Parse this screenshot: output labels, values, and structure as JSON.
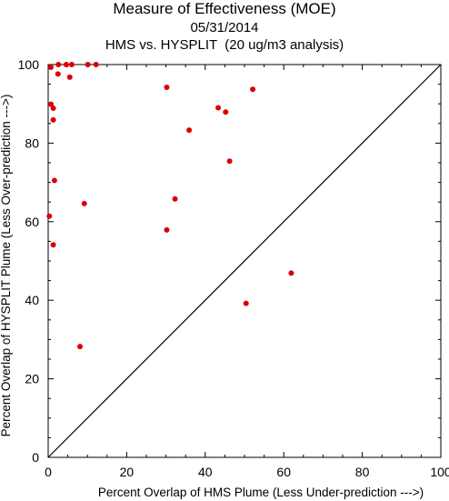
{
  "header": {
    "title": "Measure of Effectiveness (MOE)",
    "date": "05/31/2014",
    "subtitle": "HMS vs. HYSPLIT  (20 ug/m3 analysis)"
  },
  "chart_data": {
    "type": "scatter",
    "title": "Measure of Effectiveness (MOE)",
    "subtitle": "05/31/2014 — HMS vs. HYSPLIT  (20 ug/m3 analysis)",
    "xlabel": "Percent Overlap of HMS Plume (Less Under-prediction --->)",
    "ylabel": "Percent Overlap of HYSPLIT Plume (Less Over-prediction --->)",
    "xlim": [
      0,
      100
    ],
    "ylim": [
      0,
      100
    ],
    "xticks": [
      0,
      20,
      40,
      60,
      80,
      100
    ],
    "yticks": [
      0,
      20,
      40,
      60,
      80,
      100
    ],
    "grid": false,
    "reference_line": "diagonal y = x",
    "marker_color": "#dd0000",
    "line_color": "#000000",
    "points": [
      {
        "x": 0.7,
        "y": 99.3
      },
      {
        "x": 2.6,
        "y": 100
      },
      {
        "x": 4.6,
        "y": 100
      },
      {
        "x": 6.0,
        "y": 100
      },
      {
        "x": 10.1,
        "y": 100
      },
      {
        "x": 12.2,
        "y": 100
      },
      {
        "x": 2.5,
        "y": 97.6
      },
      {
        "x": 5.5,
        "y": 96.8
      },
      {
        "x": 0.7,
        "y": 89.9
      },
      {
        "x": 1.3,
        "y": 88.9
      },
      {
        "x": 1.3,
        "y": 85.9
      },
      {
        "x": 1.6,
        "y": 70.5
      },
      {
        "x": 0.3,
        "y": 61.4
      },
      {
        "x": 9.2,
        "y": 64.6
      },
      {
        "x": 1.3,
        "y": 54.1
      },
      {
        "x": 8.1,
        "y": 28.2
      },
      {
        "x": 30.2,
        "y": 94.2
      },
      {
        "x": 52.1,
        "y": 93.7
      },
      {
        "x": 43.3,
        "y": 89.0
      },
      {
        "x": 45.2,
        "y": 87.9
      },
      {
        "x": 35.9,
        "y": 83.3
      },
      {
        "x": 46.2,
        "y": 75.4
      },
      {
        "x": 32.3,
        "y": 65.8
      },
      {
        "x": 30.2,
        "y": 57.9
      },
      {
        "x": 61.9,
        "y": 46.9
      },
      {
        "x": 50.4,
        "y": 39.2
      }
    ]
  }
}
